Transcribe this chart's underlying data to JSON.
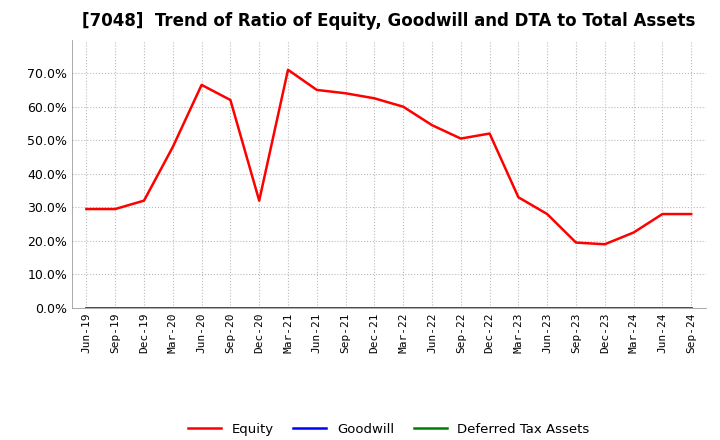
{
  "title": "[7048]  Trend of Ratio of Equity, Goodwill and DTA to Total Assets",
  "x_labels": [
    "Jun-19",
    "Sep-19",
    "Dec-19",
    "Mar-20",
    "Jun-20",
    "Sep-20",
    "Dec-20",
    "Mar-21",
    "Jun-21",
    "Sep-21",
    "Dec-21",
    "Mar-22",
    "Jun-22",
    "Sep-22",
    "Dec-22",
    "Mar-23",
    "Jun-23",
    "Sep-23",
    "Dec-23",
    "Mar-24",
    "Jun-24",
    "Sep-24"
  ],
  "equity": [
    0.295,
    0.295,
    0.32,
    0.48,
    0.665,
    0.62,
    0.32,
    0.71,
    0.65,
    0.64,
    0.625,
    0.6,
    0.545,
    0.505,
    0.52,
    0.33,
    0.28,
    0.195,
    0.19,
    0.225,
    0.28,
    0.28
  ],
  "goodwill": [
    0.0,
    0.0,
    0.0,
    0.0,
    0.0,
    0.0,
    0.0,
    0.0,
    0.0,
    0.0,
    0.0,
    0.0,
    0.0,
    0.0,
    0.0,
    0.0,
    0.0,
    0.0,
    0.0,
    0.0,
    0.0,
    0.0
  ],
  "dta": [
    0.0,
    0.0,
    0.0,
    0.0,
    0.0,
    0.0,
    0.0,
    0.0,
    0.0,
    0.0,
    0.0,
    0.0,
    0.0,
    0.0,
    0.0,
    0.0,
    0.0,
    0.0,
    0.0,
    0.0,
    0.0,
    0.0
  ],
  "equity_color": "#ff0000",
  "goodwill_color": "#0000ff",
  "dta_color": "#008000",
  "ylim": [
    0.0,
    0.8
  ],
  "yticks": [
    0.0,
    0.1,
    0.2,
    0.3,
    0.4,
    0.5,
    0.6,
    0.7
  ],
  "background_color": "#ffffff",
  "grid_color": "#bbbbbb",
  "title_fontsize": 12,
  "legend_labels": [
    "Equity",
    "Goodwill",
    "Deferred Tax Assets"
  ]
}
